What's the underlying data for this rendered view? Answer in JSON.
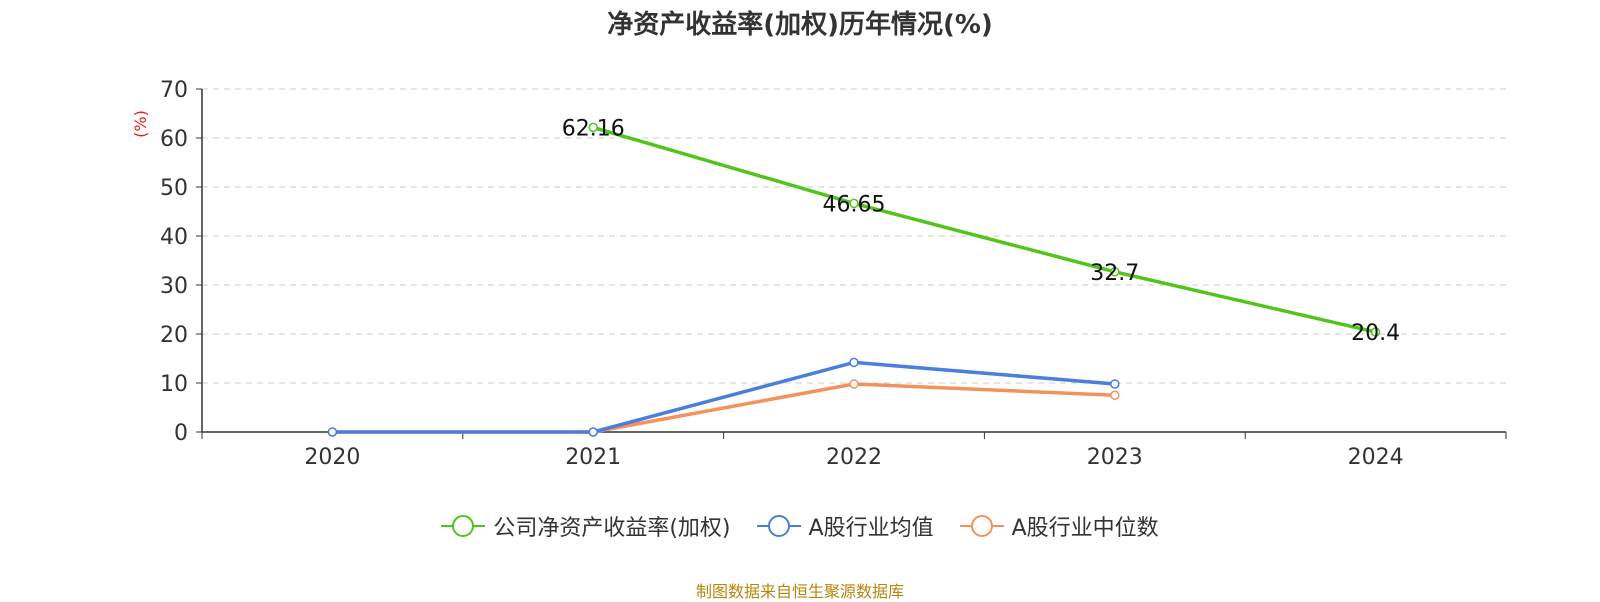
{
  "chart_data": {
    "type": "line",
    "title": "净资产收益率(加权)历年情况(%)",
    "ylabel": "(%)",
    "xlabel": "",
    "categories": [
      "2020",
      "2021",
      "2022",
      "2023",
      "2024"
    ],
    "ylim": [
      0,
      70
    ],
    "yticks": [
      0,
      10,
      20,
      30,
      40,
      50,
      60,
      70
    ],
    "grid": true,
    "legend_position": "bottom",
    "series": [
      {
        "name": "公司净资产收益率(加权)",
        "color": "#52c41a",
        "values": [
          null,
          62.16,
          46.65,
          32.7,
          20.4
        ],
        "show_labels": true
      },
      {
        "name": "A股行业均值",
        "color": "#4a7fdc",
        "values": [
          0,
          0,
          14.2,
          9.8,
          null
        ],
        "show_labels": false
      },
      {
        "name": "A股行业中位数",
        "color": "#f4925e",
        "values": [
          0,
          0,
          9.8,
          7.5,
          null
        ],
        "show_labels": false
      }
    ],
    "data_labels": [
      "62.16",
      "46.65",
      "32.7",
      "20.4"
    ]
  },
  "source": "制图数据来自恒生聚源数据库"
}
